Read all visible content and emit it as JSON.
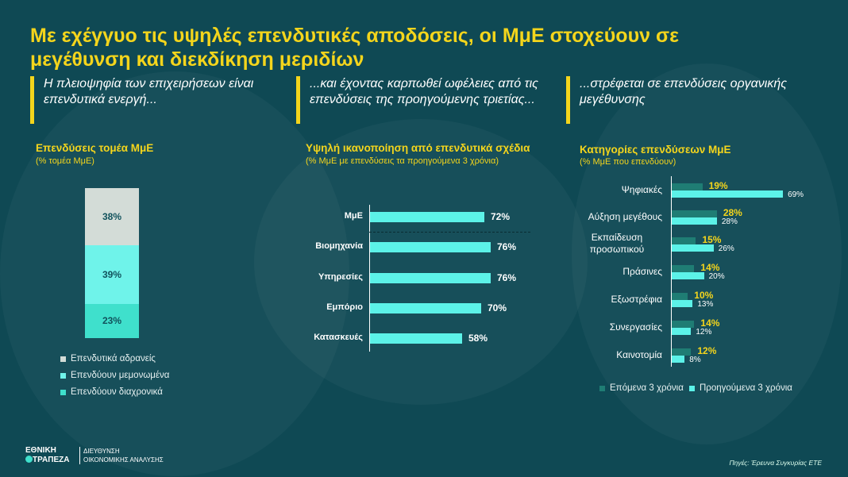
{
  "title": "Με εχέγγυο τις υψηλές επενδυτικές αποδόσεις, οι ΜμΕ στοχεύουν σε μεγέθυνση και διεκδίκηση μεριδίων",
  "subtitles": [
    "Η πλειοψηφία των επιχειρήσεων είναι επενδυτικά ενεργή...",
    "...και έχοντας καρπωθεί ωφέλειες από τις επενδύσεις της προηγούμενης τριετίας...",
    "...στρέφεται σε επενδύσεις οργανικής μεγέθυνσης"
  ],
  "colors": {
    "yellow": "#f4d51c",
    "background": "#0f4954",
    "cyan": "#5cf2e8",
    "dark_teal": "#1f7d74",
    "gray": "#d3dcd7"
  },
  "chart_data": [
    {
      "type": "bar",
      "stacked": true,
      "title": "Επενδύσεις τομέα ΜμΕ",
      "subtitle": "(% τομέα ΜμΕ)",
      "series": [
        {
          "name": "Επενδυτικά αδρανείς",
          "value": 38,
          "label": "38%",
          "color": "#d3dcd7"
        },
        {
          "name": "Επενδύουν μεμονωμένα",
          "value": 39,
          "label": "39%",
          "color": "#6ff3ea"
        },
        {
          "name": "Επενδύουν διαχρονικά",
          "value": 23,
          "label": "23%",
          "color": "#3fe0cc"
        }
      ]
    },
    {
      "type": "bar",
      "orientation": "horizontal",
      "title": "Υψηλή ικανοποίηση από επενδυτικά σχέδια",
      "subtitle": "(% ΜμΕ με επενδύσεις τα προηγούμενα 3 χρόνια)",
      "categories": [
        "ΜμΕ",
        "Βιομηχανία",
        "Υπηρεσίες",
        "Εμπόριο",
        "Κατασκευές"
      ],
      "values": [
        72,
        76,
        76,
        70,
        58
      ],
      "labels": [
        "72%",
        "76%",
        "76%",
        "70%",
        "58%"
      ]
    },
    {
      "type": "bar",
      "orientation": "horizontal",
      "title": "Κατηγορίες επενδύσεων ΜμΕ",
      "subtitle": "(% ΜμΕ που επενδύουν)",
      "categories": [
        "Ψηφιακές",
        "Αύξηση μεγέθους",
        "Εκπαίδευση προσωπικού",
        "Πράσινες",
        "Εξωστρέφια",
        "Συνεργασίες",
        "Καινοτομία"
      ],
      "series": [
        {
          "name": "Επόμενα 3 χρόνια",
          "values": [
            19,
            28,
            15,
            14,
            10,
            14,
            12
          ],
          "labels": [
            "19%",
            "28%",
            "15%",
            "14%",
            "10%",
            "14%",
            "12%"
          ]
        },
        {
          "name": "Προηγούμενα 3 χρόνια",
          "values": [
            69,
            28,
            26,
            20,
            13,
            12,
            8
          ],
          "labels": [
            "69%",
            "28%",
            "26%",
            "20%",
            "13%",
            "12%",
            "8%"
          ]
        }
      ],
      "legend": "bottom"
    }
  ],
  "footer": {
    "logo_line1": "ΕΘΝΙΚΗ",
    "logo_line2": "ΤΡΑΠΕΖΑ",
    "dept_line1": "ΔΙΕΥΘΥΝΣΗ",
    "dept_line2": "ΟΙΚΟΝΟΜΙΚΗΣ ΑΝΑΛΥΣΗΣ",
    "source": "Πηγές: Έρευνα Συγκυρίας ΕΤΕ"
  }
}
